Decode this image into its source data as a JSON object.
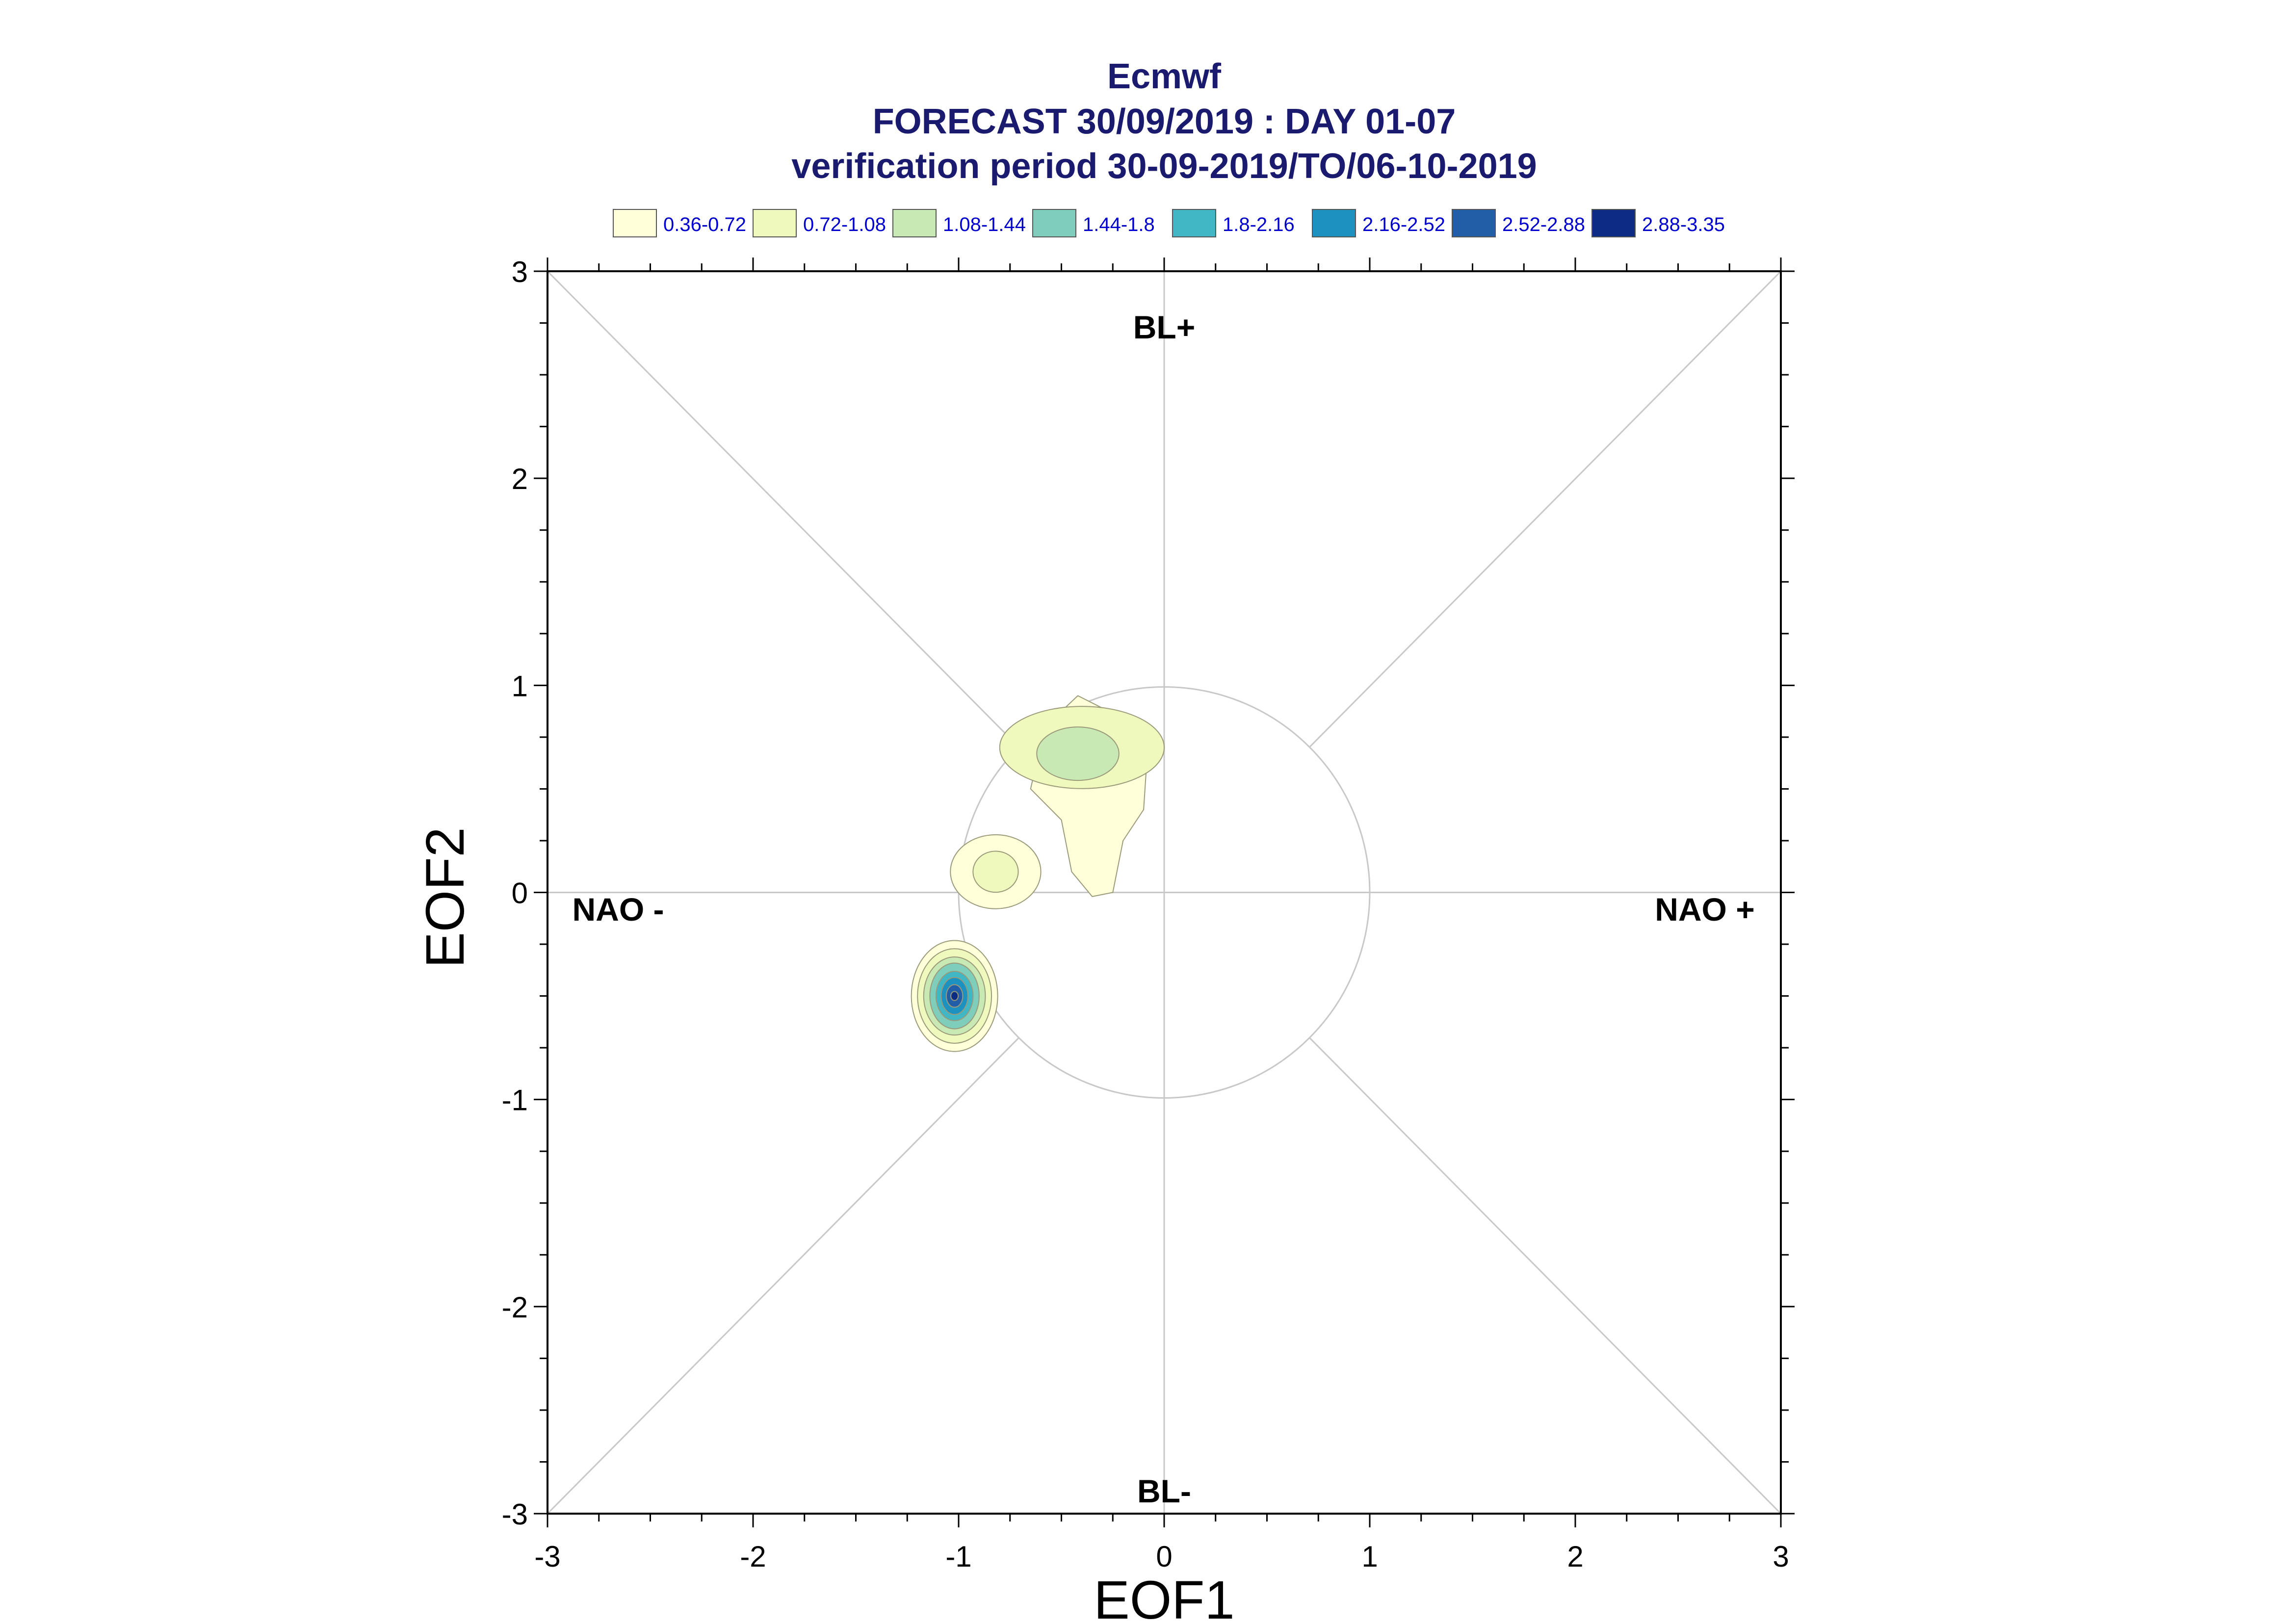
{
  "chart_data": {
    "type": "contour",
    "title_lines": [
      "Ecmwf",
      "FORECAST 30/09/2019 : DAY 01-07",
      "verification period 30-09-2019/TO/06-10-2019"
    ],
    "xlabel": "EOF1",
    "ylabel": "EOF2",
    "xlim": [
      -3,
      3
    ],
    "ylim": [
      -3,
      3
    ],
    "x_ticks": [
      "-3",
      "-2",
      "-1",
      "0",
      "1",
      "2",
      "3"
    ],
    "y_ticks": [
      "-3",
      "-2",
      "-1",
      "0",
      "1",
      "2",
      "3"
    ],
    "regime_labels": {
      "top": "BL+",
      "bottom": "BL-",
      "left": "NAO -",
      "right": "NAO +"
    },
    "unit_circle_radius": 1,
    "legend": {
      "placement": "top",
      "items": [
        {
          "label": "0.36-0.72",
          "color": "#ffffd9"
        },
        {
          "label": "0.72-1.08",
          "color": "#eff9bd"
        },
        {
          "label": "1.08-1.44",
          "color": "#c9e9b4"
        },
        {
          "label": "1.44-1.8",
          "color": "#7fcdbb"
        },
        {
          "label": "1.8-2.16",
          "color": "#41b6c4"
        },
        {
          "label": "2.16-2.52",
          "color": "#1d91c0"
        },
        {
          "label": "2.52-2.88",
          "color": "#225ea8"
        },
        {
          "label": "2.88-3.35",
          "color": "#0c2c84"
        }
      ]
    },
    "density_clusters": [
      {
        "cx": -0.35,
        "cy": 0.52,
        "levels": [
          "0.36-0.72",
          "0.72-1.08",
          "1.08-1.44"
        ]
      },
      {
        "cx": -0.82,
        "cy": 0.1,
        "levels": [
          "0.36-0.72",
          "0.72-1.08"
        ]
      },
      {
        "cx": -1.02,
        "cy": -0.5,
        "levels": [
          "0.36-0.72",
          "0.72-1.08",
          "1.08-1.44",
          "1.44-1.8",
          "1.8-2.16",
          "2.16-2.52",
          "2.52-2.88",
          "2.88-3.35"
        ]
      }
    ]
  }
}
